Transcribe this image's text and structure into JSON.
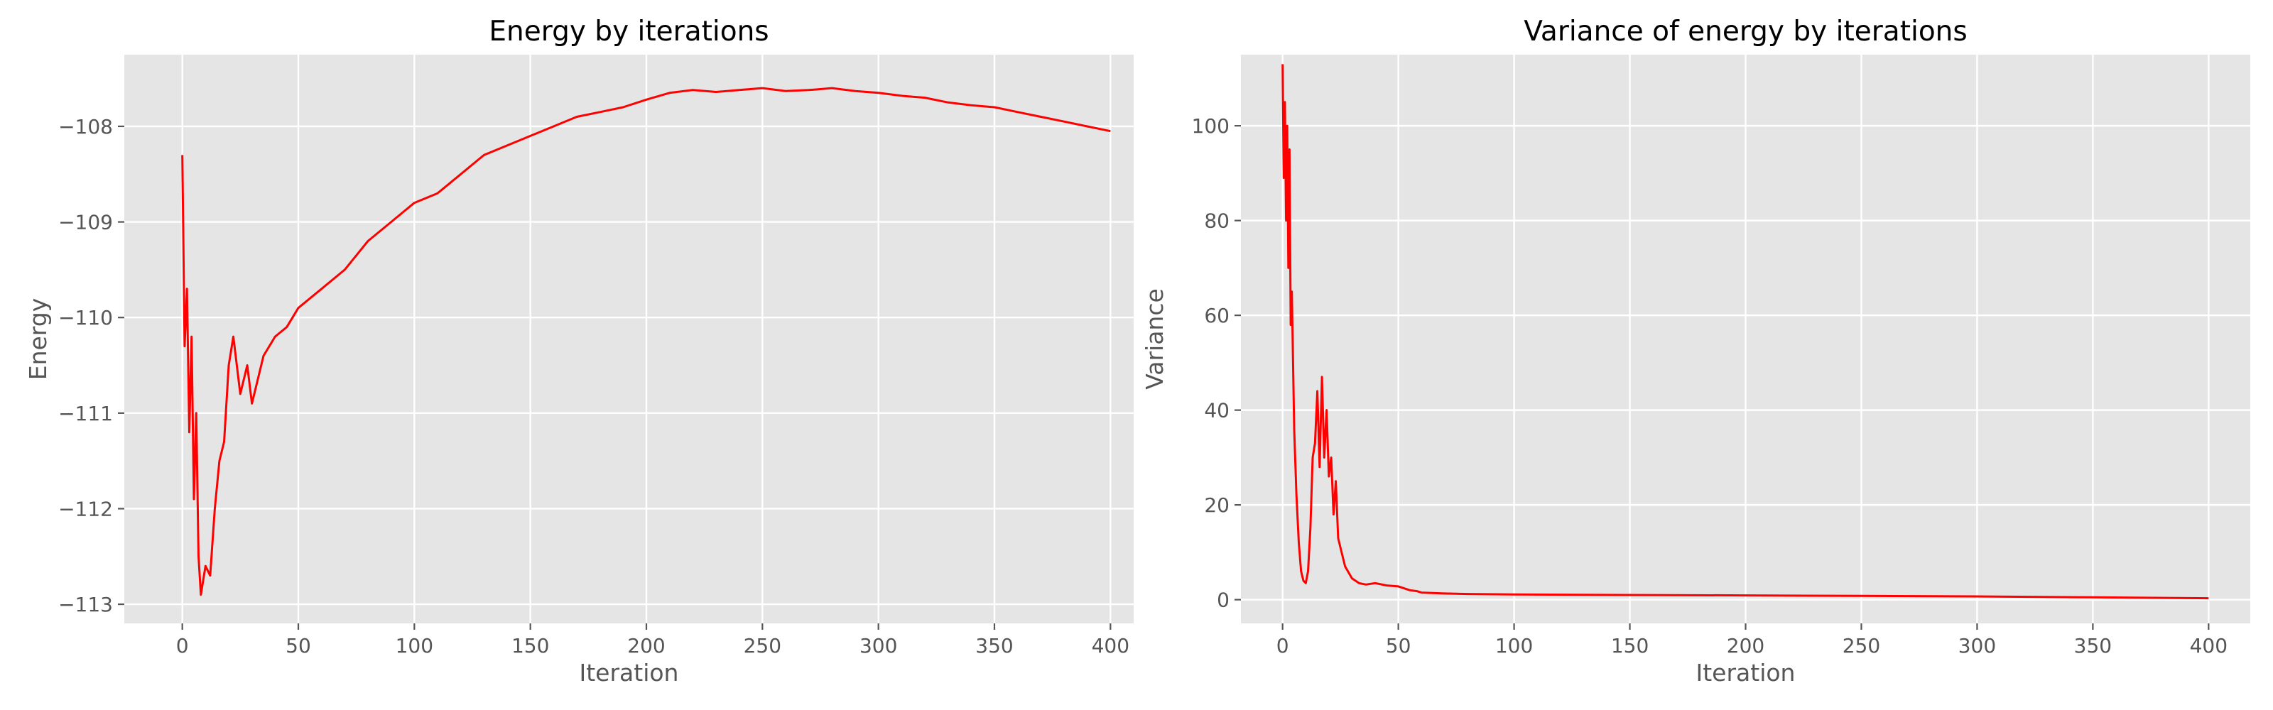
{
  "chart_data": [
    {
      "type": "line",
      "title": "Energy by iterations",
      "xlabel": "Iteration",
      "ylabel": "Energy",
      "xlim": [
        -25,
        410
      ],
      "ylim": [
        -113.2,
        -107.25
      ],
      "xticks": [
        0,
        50,
        100,
        150,
        200,
        250,
        300,
        350,
        400
      ],
      "yticks": [
        -113,
        -112,
        -111,
        -110,
        -109,
        -108
      ],
      "ytick_labels": [
        "−113",
        "−112",
        "−111",
        "−110",
        "−109",
        "−108"
      ],
      "grid": true,
      "color": "#ff0000",
      "series": [
        {
          "x": [
            0,
            1,
            2,
            3,
            4,
            5,
            6,
            7,
            8,
            10,
            12,
            14,
            16,
            18,
            20,
            22,
            25,
            28,
            30,
            35,
            40,
            45,
            50,
            60,
            70,
            80,
            90,
            100,
            110,
            120,
            130,
            140,
            150,
            160,
            170,
            180,
            190,
            200,
            210,
            220,
            230,
            240,
            250,
            260,
            270,
            280,
            290,
            300,
            310,
            320,
            330,
            340,
            350,
            360,
            370,
            380,
            390,
            400
          ],
          "y": [
            -108.3,
            -110.3,
            -109.7,
            -111.2,
            -110.2,
            -111.9,
            -111.0,
            -112.5,
            -112.9,
            -112.6,
            -112.7,
            -112.0,
            -111.5,
            -111.3,
            -110.5,
            -110.2,
            -110.8,
            -110.5,
            -110.9,
            -110.4,
            -110.2,
            -110.1,
            -109.9,
            -109.7,
            -109.5,
            -109.2,
            -109.0,
            -108.8,
            -108.7,
            -108.5,
            -108.3,
            -108.2,
            -108.1,
            -108.0,
            -107.9,
            -107.85,
            -107.8,
            -107.72,
            -107.65,
            -107.62,
            -107.64,
            -107.62,
            -107.6,
            -107.63,
            -107.62,
            -107.6,
            -107.63,
            -107.65,
            -107.68,
            -107.7,
            -107.75,
            -107.78,
            -107.8,
            -107.85,
            -107.9,
            -107.95,
            -108.0,
            -108.05
          ]
        }
      ]
    },
    {
      "type": "line",
      "title": "Variance of energy by iterations",
      "xlabel": "Iteration",
      "ylabel": "Variance",
      "xlim": [
        -18,
        418
      ],
      "ylim": [
        -5,
        115
      ],
      "xticks": [
        0,
        50,
        100,
        150,
        200,
        250,
        300,
        350,
        400
      ],
      "yticks": [
        0,
        20,
        40,
        60,
        80,
        100
      ],
      "ytick_labels": [
        "0",
        "20",
        "40",
        "60",
        "80",
        "100"
      ],
      "grid": true,
      "color": "#ff0000",
      "series": [
        {
          "x": [
            0,
            0.5,
            1,
            1.5,
            2,
            2.5,
            3,
            3.5,
            4,
            5,
            6,
            7,
            8,
            9,
            10,
            11,
            12,
            13,
            14,
            15,
            16,
            17,
            18,
            19,
            20,
            21,
            22,
            23,
            24,
            25,
            27,
            30,
            33,
            36,
            40,
            45,
            50,
            55,
            58,
            60,
            70,
            80,
            100,
            150,
            200,
            250,
            300,
            350,
            400
          ],
          "y": [
            113,
            89,
            105,
            80,
            100,
            70,
            95,
            58,
            65,
            36,
            22,
            12,
            6,
            4,
            3.5,
            6,
            15,
            30,
            33,
            44,
            28,
            47,
            30,
            40,
            26,
            30,
            18,
            25,
            13,
            11,
            7,
            4.5,
            3.5,
            3.2,
            3.5,
            3.0,
            2.8,
            2.0,
            1.8,
            1.5,
            1.3,
            1.2,
            1.1,
            1.0,
            0.9,
            0.8,
            0.7,
            0.5,
            0.3
          ]
        }
      ]
    }
  ]
}
